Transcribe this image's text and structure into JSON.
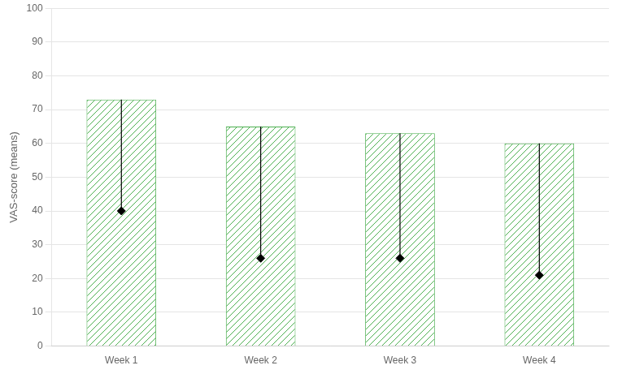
{
  "chart_data": {
    "type": "bar",
    "categories": [
      "Week 1",
      "Week 2",
      "Week 3",
      "Week 4"
    ],
    "series": [
      {
        "type": "bar",
        "color": "#4CAF50",
        "values": [
          73,
          65,
          63,
          60
        ]
      },
      {
        "type": "scatter",
        "marker": "diamond",
        "color": "#000000",
        "values": [
          40,
          26,
          26,
          21
        ]
      }
    ],
    "ylabel": "VAS-score (means)",
    "ylim": [
      0,
      100
    ],
    "yticks": [
      0,
      10,
      20,
      30,
      40,
      50,
      60,
      70,
      80,
      90,
      100
    ],
    "grid": true
  }
}
